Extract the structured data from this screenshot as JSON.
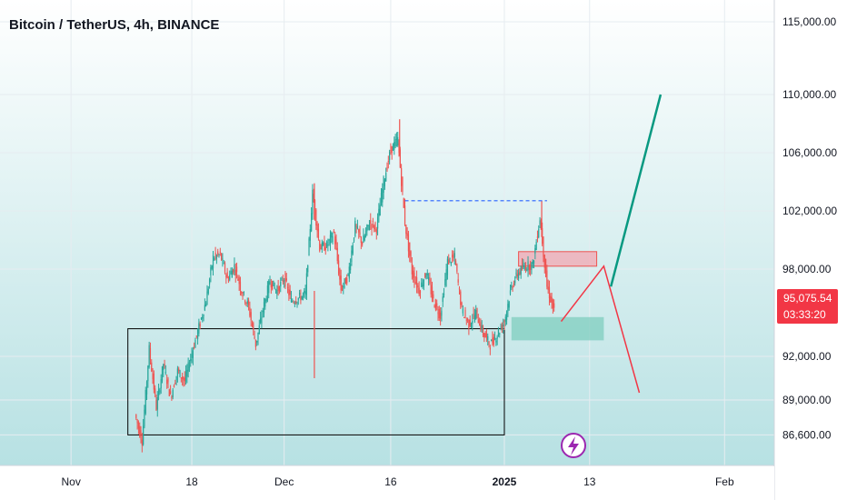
{
  "colors": {
    "bull": "#26a69a",
    "bear": "#ef5350",
    "grid": "#e6ecf0",
    "price_tag": "#f23645",
    "bg_top": "#ffffff",
    "bg_bottom": "#b7e1e3",
    "target_line": "#089981",
    "projection_line": "#f23645",
    "resistance_dash": "#2962ff",
    "demand_zone": "#7fcdbf",
    "supply_zone": "#f5a3ae",
    "range_box": "#000000",
    "lightning_icon": "#9c27b0"
  },
  "chart_data": {
    "type": "candlestick",
    "title": "Bitcoin / TetherUS, 4h, BINANCE",
    "ylim": [
      84500,
      116500
    ],
    "y_ticks": [
      {
        "value": 115000,
        "label": "115,000.00"
      },
      {
        "value": 110000,
        "label": "110,000.00"
      },
      {
        "value": 106000,
        "label": "106,000.00"
      },
      {
        "value": 102000,
        "label": "102,000.00"
      },
      {
        "value": 98000,
        "label": "98,000.00"
      },
      {
        "value": 92000,
        "label": "92,000.00"
      },
      {
        "value": 89000,
        "label": "89,000.00"
      },
      {
        "value": 86600,
        "label": "86,600.00"
      }
    ],
    "x_ticks": [
      {
        "date": "2024-11-01",
        "label": "Nov",
        "bold": false
      },
      {
        "date": "2024-11-18",
        "label": "18",
        "bold": false
      },
      {
        "date": "2024-12-01",
        "label": "Dec",
        "bold": false
      },
      {
        "date": "2024-12-16",
        "label": "16",
        "bold": false
      },
      {
        "date": "2025-01-01",
        "label": "2025",
        "bold": true
      },
      {
        "date": "2025-01-13",
        "label": "13",
        "bold": false
      },
      {
        "date": "2025-02-01",
        "label": "Feb",
        "bold": false
      }
    ],
    "x_range": [
      "2024-10-22",
      "2025-02-08"
    ],
    "price_path": [
      [
        "2024-11-10",
        88000
      ],
      [
        "2024-11-11",
        86200
      ],
      [
        "2024-11-12",
        92500
      ],
      [
        "2024-11-13",
        88500
      ],
      [
        "2024-11-14",
        91500
      ],
      [
        "2024-11-15",
        89200
      ],
      [
        "2024-11-16",
        91000
      ],
      [
        "2024-11-17",
        90300
      ],
      [
        "2024-11-18",
        92200
      ],
      [
        "2024-11-19",
        94000
      ],
      [
        "2024-11-20",
        95800
      ],
      [
        "2024-11-21",
        98800
      ],
      [
        "2024-11-22",
        99000
      ],
      [
        "2024-11-23",
        97300
      ],
      [
        "2024-11-24",
        98200
      ],
      [
        "2024-11-25",
        96500
      ],
      [
        "2024-11-26",
        95400
      ],
      [
        "2024-11-27",
        92800
      ],
      [
        "2024-11-28",
        95200
      ],
      [
        "2024-11-29",
        97200
      ],
      [
        "2024-11-30",
        96500
      ],
      [
        "2024-12-01",
        97400
      ],
      [
        "2024-12-02",
        95800
      ],
      [
        "2024-12-03",
        96000
      ],
      [
        "2024-12-04",
        96300
      ],
      [
        "2024-12-05",
        103200
      ],
      [
        "2024-12-06",
        99500
      ],
      [
        "2024-12-07",
        99600
      ],
      [
        "2024-12-08",
        100500
      ],
      [
        "2024-12-09",
        96600
      ],
      [
        "2024-12-10",
        97500
      ],
      [
        "2024-12-11",
        101000
      ],
      [
        "2024-12-12",
        99800
      ],
      [
        "2024-12-13",
        101200
      ],
      [
        "2024-12-14",
        100800
      ],
      [
        "2024-12-15",
        104000
      ],
      [
        "2024-12-16",
        106200
      ],
      [
        "2024-12-17",
        106900
      ],
      [
        "2024-12-18",
        101200
      ],
      [
        "2024-12-19",
        97800
      ],
      [
        "2024-12-20",
        96500
      ],
      [
        "2024-12-21",
        97800
      ],
      [
        "2024-12-22",
        95800
      ],
      [
        "2024-12-23",
        94800
      ],
      [
        "2024-12-24",
        98500
      ],
      [
        "2024-12-25",
        98800
      ],
      [
        "2024-12-26",
        95200
      ],
      [
        "2024-12-27",
        94200
      ],
      [
        "2024-12-28",
        95000
      ],
      [
        "2024-12-29",
        93600
      ],
      [
        "2024-12-30",
        92800
      ],
      [
        "2024-12-31",
        93500
      ],
      [
        "2025-01-01",
        94400
      ],
      [
        "2025-01-02",
        96800
      ],
      [
        "2025-01-03",
        97800
      ],
      [
        "2025-01-04",
        98200
      ],
      [
        "2025-01-05",
        98300
      ],
      [
        "2025-01-06",
        101500
      ],
      [
        "2025-01-07",
        96800
      ],
      [
        "2025-01-08",
        95075
      ]
    ],
    "wick_extremes": [
      {
        "date": "2024-12-05",
        "high": 103900,
        "low": 90500
      },
      {
        "date": "2024-12-17",
        "high": 108300
      },
      {
        "date": "2025-01-06",
        "high": 102700
      }
    ],
    "last_price": {
      "label": "95,075.54",
      "countdown": "03:33:20",
      "value": 95075.54
    },
    "annotations": {
      "range_box": {
        "x0": "2024-11-09",
        "x1": "2025-01-01",
        "y_low": 86600,
        "y_high": 93900
      },
      "demand_zone": {
        "x0": "2025-01-02",
        "x1": "2025-01-15",
        "y_low": 93100,
        "y_high": 94700
      },
      "supply_zone": {
        "x0": "2025-01-03",
        "x1": "2025-01-14",
        "y_low": 98200,
        "y_high": 99200
      },
      "resistance_line": {
        "x0": "2024-12-18",
        "x1": "2025-01-07",
        "y": 102700
      },
      "bear_projection": [
        [
          "2025-01-09",
          94400
        ],
        [
          "2025-01-15",
          98200
        ],
        [
          "2025-01-20",
          89500
        ]
      ],
      "bull_projection": [
        [
          "2025-01-16",
          96800
        ],
        [
          "2025-01-23",
          110000
        ]
      ]
    }
  }
}
